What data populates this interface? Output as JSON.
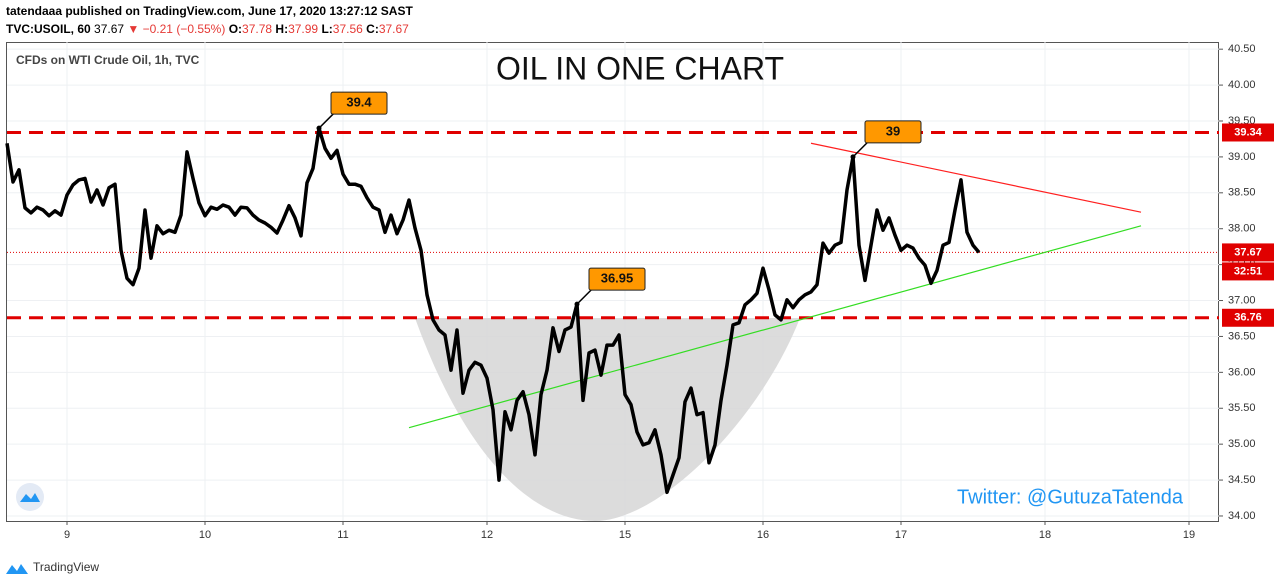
{
  "header": {
    "publisher": "tatendaaa published on TradingView.com, June 17, 2020 13:27:12 SAST",
    "symbol": "TVC:USOIL, 60",
    "price": "37.67",
    "change": "▼ −0.21 (−0.55%)",
    "open_label": "O:",
    "open": "37.78",
    "high_label": "H:",
    "high": "37.99",
    "low_label": "L:",
    "low": "37.56",
    "close_label": "C:",
    "close": "37.67",
    "footer": "TradingView"
  },
  "chart_data": {
    "type": "line",
    "title": "OIL IN ONE CHART",
    "subtitle": "CFDs on WTI Crude Oil, 1h, TVC",
    "annotation": "Twitter: @GutuzaTatenda",
    "x": [
      0,
      1,
      2,
      3,
      4,
      5,
      6,
      7,
      8,
      9,
      10,
      11,
      12,
      13,
      14,
      15,
      16,
      17,
      18,
      19,
      20,
      21,
      22,
      23,
      24,
      25,
      26,
      27,
      28,
      29,
      30,
      31,
      32,
      33,
      34,
      35,
      36,
      37,
      38,
      39,
      40,
      41,
      42,
      43,
      44,
      45,
      46,
      47,
      48,
      49,
      50,
      51,
      52,
      53,
      54,
      55,
      56,
      57,
      58,
      59,
      60,
      61,
      62,
      63,
      64,
      65,
      66,
      67,
      68,
      69,
      70,
      71,
      72,
      73,
      74,
      75,
      76,
      77,
      78,
      79,
      80,
      81,
      82,
      83,
      84,
      85,
      86,
      87,
      88,
      89,
      90,
      91,
      92,
      93,
      94,
      95,
      96,
      97,
      98,
      99,
      100,
      101,
      102,
      103,
      104,
      105,
      106,
      107,
      108,
      109,
      110,
      111,
      112,
      113,
      114,
      115,
      116,
      117,
      118,
      119,
      120,
      121,
      122,
      123,
      124,
      125,
      126,
      127,
      128,
      129,
      130,
      131,
      132,
      133,
      134,
      135,
      136,
      137,
      138,
      139,
      140,
      141,
      142,
      143,
      144,
      145,
      146,
      147,
      148,
      149,
      150,
      151,
      152,
      153,
      154,
      155,
      156,
      157,
      158,
      159,
      160,
      161,
      162
    ],
    "series": [
      {
        "name": "USOIL",
        "color": "#000000",
        "values": [
          39.19,
          38.65,
          38.82,
          38.29,
          38.22,
          38.3,
          38.26,
          38.18,
          38.25,
          38.19,
          38.47,
          38.61,
          38.68,
          38.7,
          38.37,
          38.54,
          38.33,
          38.57,
          38.62,
          37.7,
          37.31,
          37.22,
          37.45,
          38.26,
          37.59,
          38.04,
          37.93,
          37.98,
          37.95,
          38.19,
          39.07,
          38.7,
          38.36,
          38.18,
          38.3,
          38.27,
          38.33,
          38.3,
          38.19,
          38.3,
          38.29,
          38.19,
          38.12,
          38.08,
          38.02,
          37.94,
          38.12,
          38.32,
          38.15,
          37.9,
          38.64,
          38.84,
          39.4,
          39.12,
          38.98,
          39.09,
          38.76,
          38.62,
          38.62,
          38.59,
          38.43,
          38.3,
          38.26,
          37.95,
          38.19,
          37.93,
          38.12,
          38.4,
          38.01,
          37.7,
          37.08,
          36.73,
          36.59,
          36.52,
          36.03,
          36.59,
          35.71,
          36.03,
          36.14,
          36.1,
          35.92,
          35.48,
          34.5,
          35.45,
          35.2,
          35.61,
          35.73,
          35.41,
          34.85,
          35.69,
          36.03,
          36.62,
          36.29,
          36.59,
          36.63,
          36.95,
          35.61,
          36.27,
          36.31,
          35.96,
          36.38,
          36.38,
          36.52,
          35.69,
          35.55,
          35.17,
          34.99,
          35.02,
          35.2,
          34.85,
          34.33,
          34.57,
          34.81,
          35.59,
          35.78,
          35.41,
          35.44,
          34.74,
          34.99,
          35.61,
          36.1,
          36.66,
          36.69,
          36.94,
          37.01,
          37.1,
          37.45,
          37.15,
          36.8,
          36.73,
          37.01,
          36.9,
          37.01,
          37.08,
          37.12,
          37.22,
          37.8,
          37.66,
          37.77,
          37.81,
          38.54,
          39.0,
          37.77,
          37.28,
          37.77,
          38.26,
          37.98,
          38.15,
          37.91,
          37.7,
          37.77,
          37.73,
          37.59,
          37.49,
          37.24,
          37.42,
          37.77,
          37.81,
          38.26,
          38.68,
          37.95,
          37.77,
          37.67
        ]
      }
    ],
    "xlim": [
      0,
      202
    ],
    "ylim": [
      33.93,
      40.6
    ],
    "xticks": [
      {
        "value": 10,
        "label": "9"
      },
      {
        "value": 33,
        "label": "10"
      },
      {
        "value": 56,
        "label": "11"
      },
      {
        "value": 80,
        "label": "12"
      },
      {
        "value": 103,
        "label": "15"
      },
      {
        "value": 126,
        "label": "16"
      },
      {
        "value": 149,
        "label": "17"
      },
      {
        "value": 173,
        "label": "18"
      },
      {
        "value": 197,
        "label": "19"
      }
    ],
    "yticks": [
      {
        "value": 34,
        "label": "34.00"
      },
      {
        "value": 34.5,
        "label": "34.50"
      },
      {
        "value": 35,
        "label": "35.00"
      },
      {
        "value": 35.5,
        "label": "35.50"
      },
      {
        "value": 36,
        "label": "36.00"
      },
      {
        "value": 36.5,
        "label": "36.50"
      },
      {
        "value": 37,
        "label": "37.00"
      },
      {
        "value": 37.5,
        "label": "37.50"
      },
      {
        "value": 38,
        "label": "38.00"
      },
      {
        "value": 38.5,
        "label": "38.50"
      },
      {
        "value": 39,
        "label": "39.00"
      },
      {
        "value": 39.5,
        "label": "39.50"
      },
      {
        "value": 40,
        "label": "40.00"
      },
      {
        "value": 40.5,
        "label": "40.50"
      }
    ],
    "grid": true,
    "hlines": [
      {
        "value": 39.34,
        "color": "#e00000"
      },
      {
        "value": 36.76,
        "color": "#e00000"
      }
    ],
    "last_price": {
      "value": 37.67,
      "color": "#e00000",
      "countdown": "32:51"
    },
    "callouts": [
      {
        "x": 52,
        "value": 39.4
      },
      {
        "x": 95,
        "value": 36.95
      },
      {
        "x": 141,
        "value": 39.0
      }
    ],
    "trendlines": [
      {
        "color": "#ff2020",
        "x": [
          134,
          189
        ],
        "values": [
          39.19,
          38.23
        ]
      },
      {
        "color": "#33dd22",
        "x": [
          67,
          189
        ],
        "values": [
          35.23,
          38.04
        ]
      }
    ]
  }
}
